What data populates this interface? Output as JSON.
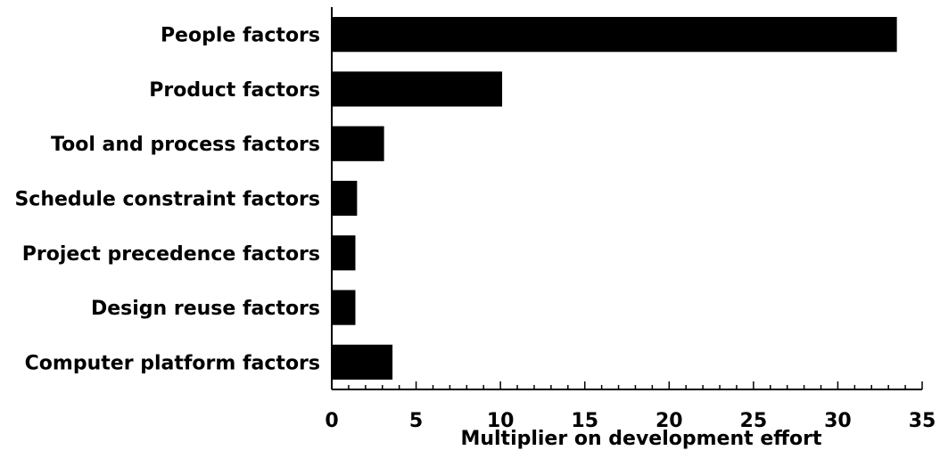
{
  "chart_data": {
    "type": "bar",
    "orientation": "horizontal",
    "categories": [
      "People factors",
      "Product factors",
      "Tool and process factors",
      "Schedule constraint factors",
      "Project precedence factors",
      "Design reuse factors",
      "Computer platform factors"
    ],
    "values": [
      33.5,
      10.1,
      3.1,
      1.5,
      1.4,
      1.4,
      3.6
    ],
    "xlabel": "Multiplier on development effort",
    "ylabel": "",
    "xlim": [
      0,
      35
    ],
    "xticks": [
      "0",
      "5",
      "10",
      "15",
      "20",
      "25",
      "30",
      "35"
    ],
    "grid": false,
    "bar_color": "#000000"
  }
}
